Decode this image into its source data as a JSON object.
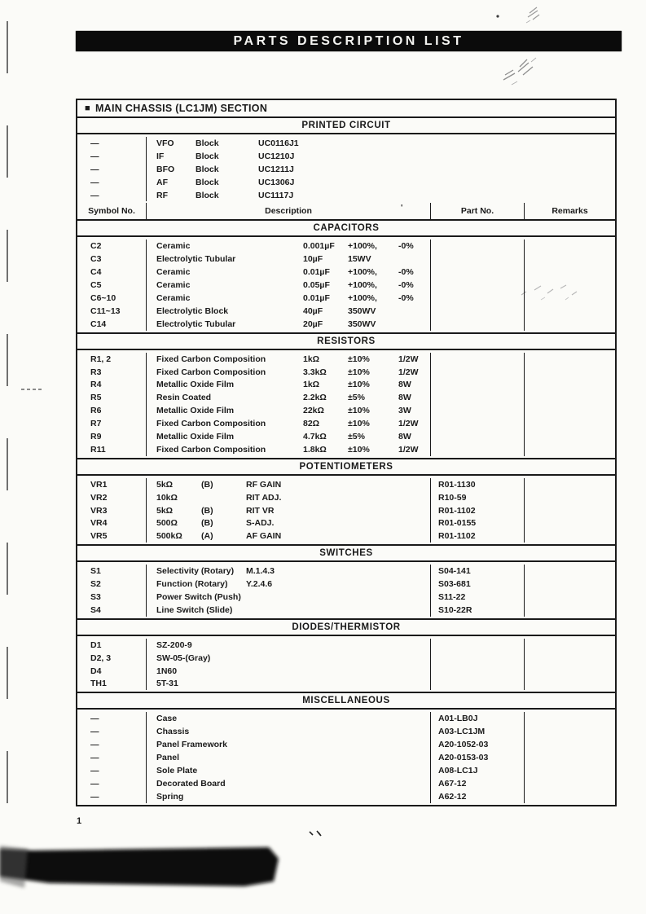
{
  "page": {
    "title": "PARTS DESCRIPTION LIST",
    "page_number": "1",
    "paper_color": "#fbfbf8",
    "ink_color": "#1a1a1a",
    "banner_bg": "#0b0b0b",
    "banner_text_color": "#f4f4f1",
    "artifact_color": "#8b8b8b"
  },
  "section": {
    "bullet": "■",
    "label": "MAIN CHASSIS (LC1JM) SECTION"
  },
  "table": {
    "header": {
      "symbol": "Symbol No.",
      "description": "Description",
      "part_no": "Part No.",
      "remarks": "Remarks",
      "stray_mark": "'"
    },
    "layouts": {
      "pc": [
        48,
        77
      ],
      "cap4": [
        180,
        55,
        62
      ],
      "pot": [
        55,
        55
      ],
      "sw": [
        110
      ],
      "single": []
    },
    "sections": [
      {
        "id": "printed-circuit",
        "heading": "PRINTED CIRCUIT",
        "layout": "pc",
        "rows": [
          {
            "symbol": "—",
            "desc": [
              "VFO",
              "Block",
              "UC0116J1"
            ]
          },
          {
            "symbol": "—",
            "desc": [
              "IF",
              "Block",
              "UC1210J"
            ]
          },
          {
            "symbol": "—",
            "desc": [
              "BFO",
              "Block",
              "UC1211J"
            ]
          },
          {
            "symbol": "—",
            "desc": [
              "AF",
              "Block",
              "UC1306J"
            ]
          },
          {
            "symbol": "—",
            "desc": [
              "RF",
              "Block",
              "UC1117J"
            ]
          }
        ]
      },
      {
        "id": "capacitors",
        "heading": "CAPACITORS",
        "layout": "cap4",
        "rows": [
          {
            "symbol": "C2",
            "desc": [
              "Ceramic",
              "0.001µF",
              "+100%,",
              "-0%"
            ]
          },
          {
            "symbol": "C3",
            "desc": [
              "Electrolytic Tubular",
              "10µF",
              "15WV",
              ""
            ]
          },
          {
            "symbol": "C4",
            "desc": [
              "Ceramic",
              "0.01µF",
              "+100%,",
              "-0%"
            ]
          },
          {
            "symbol": "C5",
            "desc": [
              "Ceramic",
              "0.05µF",
              "+100%,",
              "-0%"
            ]
          },
          {
            "symbol": "C6~10",
            "desc": [
              "Ceramic",
              "0.01µF",
              "+100%,",
              "-0%"
            ]
          },
          {
            "symbol": "C11~13",
            "desc": [
              "Electrolytic Block",
              "40µF",
              "350WV",
              ""
            ]
          },
          {
            "symbol": "C14",
            "desc": [
              "Electrolytic Tubular",
              "20µF",
              "350WV",
              ""
            ]
          }
        ]
      },
      {
        "id": "resistors",
        "heading": "RESISTORS",
        "layout": "cap4",
        "rows": [
          {
            "symbol": "R1, 2",
            "desc": [
              "Fixed Carbon Composition",
              "1kΩ",
              "±10%",
              "1/2W"
            ]
          },
          {
            "symbol": "R3",
            "desc": [
              "Fixed Carbon Composition",
              "3.3kΩ",
              "±10%",
              "1/2W"
            ]
          },
          {
            "symbol": "R4",
            "desc": [
              "Metallic Oxide Film",
              "1kΩ",
              "±10%",
              "8W"
            ]
          },
          {
            "symbol": "R5",
            "desc": [
              "Resin Coated",
              "2.2kΩ",
              "±5%",
              "8W"
            ]
          },
          {
            "symbol": "R6",
            "desc": [
              "Metallic Oxide Film",
              "22kΩ",
              "±10%",
              "3W"
            ]
          },
          {
            "symbol": "R7",
            "desc": [
              "Fixed Carbon Composition",
              "82Ω",
              "±10%",
              "1/2W"
            ]
          },
          {
            "symbol": "R9",
            "desc": [
              "Metallic Oxide Film",
              "4.7kΩ",
              "±5%",
              "8W"
            ]
          },
          {
            "symbol": "R11",
            "desc": [
              "Fixed Carbon Composition",
              "1.8kΩ",
              "±10%",
              "1/2W"
            ]
          }
        ]
      },
      {
        "id": "potentiometers",
        "heading": "POTENTIOMETERS",
        "layout": "pot",
        "rows": [
          {
            "symbol": "VR1",
            "desc": [
              "5kΩ",
              "(B)",
              "RF GAIN"
            ],
            "part": "R01-1130"
          },
          {
            "symbol": "VR2",
            "desc": [
              "10kΩ",
              "",
              "RIT ADJ."
            ],
            "part": "R10-59"
          },
          {
            "symbol": "VR3",
            "desc": [
              "5kΩ",
              "(B)",
              "RIT VR"
            ],
            "part": "R01-1102"
          },
          {
            "symbol": "VR4",
            "desc": [
              "500Ω",
              "(B)",
              "S-ADJ."
            ],
            "part": "R01-0155"
          },
          {
            "symbol": "VR5",
            "desc": [
              "500kΩ",
              "(A)",
              "AF GAIN"
            ],
            "part": "R01-1102"
          }
        ]
      },
      {
        "id": "switches",
        "heading": "SWITCHES",
        "layout": "sw",
        "rows": [
          {
            "symbol": "S1",
            "desc": [
              "Selectivity (Rotary)",
              "M.1.4.3"
            ],
            "part": "S04-141"
          },
          {
            "symbol": "S2",
            "desc": [
              "Function (Rotary)",
              "Y.2.4.6"
            ],
            "part": "S03-681"
          },
          {
            "symbol": "S3",
            "desc": [
              "Power Switch (Push)",
              ""
            ],
            "part": "S11-22"
          },
          {
            "symbol": "S4",
            "desc": [
              "Line Switch (Slide)",
              ""
            ],
            "part": "S10-22R"
          }
        ]
      },
      {
        "id": "diodes-thermistor",
        "heading": "DIODES/THERMISTOR",
        "layout": "single",
        "rows": [
          {
            "symbol": "D1",
            "desc": [
              "SZ-200-9"
            ]
          },
          {
            "symbol": "D2, 3",
            "desc": [
              "SW-05-(Gray)"
            ]
          },
          {
            "symbol": "D4",
            "desc": [
              "1N60"
            ]
          },
          {
            "symbol": "TH1",
            "desc": [
              "5T-31"
            ]
          }
        ]
      },
      {
        "id": "miscellaneous",
        "heading": "MISCELLANEOUS",
        "layout": "single",
        "rows": [
          {
            "symbol": "—",
            "desc": [
              "Case"
            ],
            "part": "A01-LB0J"
          },
          {
            "symbol": "—",
            "desc": [
              "Chassis"
            ],
            "part": "A03-LC1JM"
          },
          {
            "symbol": "—",
            "desc": [
              "Panel Framework"
            ],
            "part": "A20-1052-03"
          },
          {
            "symbol": "—",
            "desc": [
              "Panel"
            ],
            "part": "A20-0153-03"
          },
          {
            "symbol": "—",
            "desc": [
              "Sole Plate"
            ],
            "part": "A08-LC1J"
          },
          {
            "symbol": "—",
            "desc": [
              "Decorated Board"
            ],
            "part": "A67-12"
          },
          {
            "symbol": "—",
            "desc": [
              "Spring"
            ],
            "part": "A62-12"
          }
        ]
      }
    ]
  }
}
